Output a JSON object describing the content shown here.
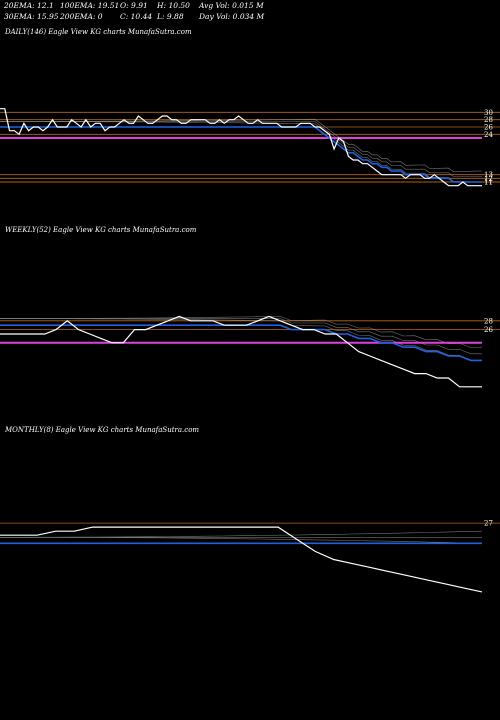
{
  "header": {
    "row1": [
      "20EMA: 12.1",
      "100EMA: 19.51",
      "O: 9.91",
      "H: 10.50",
      "Avg Vol: 0.015 M"
    ],
    "row2": [
      "30EMA: 15.95",
      "200EMA: 0",
      "C: 10.44",
      "L: 9.88",
      "Day Vol: 0.034  M"
    ]
  },
  "panels": {
    "daily": {
      "title": "DAILY(146) Eagle   View  KG charts MunafaSutra.com"
    },
    "weekly": {
      "title": "WEEKLY(52) Eagle   View  KG charts MunafaSutra.com"
    },
    "monthly": {
      "title": "MONTHLY(8) Eagle   View  KG charts MunafaSutra.com"
    }
  },
  "colors": {
    "background": "#000000",
    "price": "#ffffff",
    "ema_blue": "#2060e0",
    "ema_magenta": "#e040e0",
    "level_orange": "#b8661c",
    "ema_gray": "#909090"
  },
  "chart_data": [
    {
      "type": "line",
      "name": "daily",
      "level_labels": [
        "30",
        "28",
        "26",
        "24",
        "13",
        "12",
        "11",
        "11"
      ],
      "levels": [
        30,
        28,
        26,
        24,
        13,
        12,
        11,
        11
      ],
      "price": [
        31,
        31,
        25,
        25,
        24,
        27,
        25,
        26,
        26,
        25,
        26,
        28,
        26,
        26,
        26,
        28,
        27,
        26,
        28,
        26,
        27,
        27,
        25,
        26,
        26,
        27,
        28,
        27,
        27,
        29,
        28,
        27,
        27,
        28,
        29,
        29,
        28,
        28,
        27,
        27,
        28,
        28,
        28,
        28,
        27,
        27,
        28,
        27,
        28,
        28,
        29,
        28,
        27,
        27,
        28,
        27,
        27,
        27,
        27,
        26,
        26,
        26,
        26,
        27,
        27,
        27,
        26,
        26,
        25,
        24,
        20,
        23,
        22,
        18,
        17,
        17,
        16,
        16,
        15,
        14,
        13,
        13,
        13,
        13,
        13,
        12,
        13,
        13,
        13,
        12,
        12,
        13,
        12,
        11,
        10,
        10,
        10,
        11,
        10,
        10,
        10,
        10
      ],
      "blue_ema": [
        26,
        26,
        26,
        26,
        26,
        26,
        26,
        26,
        26,
        26,
        26,
        26,
        26,
        26,
        26,
        26,
        26,
        26,
        26,
        26,
        26,
        26,
        26,
        26,
        26,
        26,
        26,
        26,
        26,
        26,
        26,
        26,
        26,
        26,
        26,
        26,
        26,
        26,
        26,
        26,
        26,
        26,
        26,
        26,
        26,
        26,
        26,
        26,
        26,
        26,
        26,
        26,
        26,
        26,
        26,
        26,
        26,
        26,
        26,
        26,
        26,
        26,
        26,
        26,
        26,
        26,
        26,
        25,
        24,
        23,
        22,
        21,
        20,
        19,
        19,
        18,
        17,
        17,
        16,
        16,
        15,
        15,
        14,
        14,
        14,
        13,
        13,
        13,
        13,
        13,
        12,
        12,
        12,
        12,
        12,
        11,
        11,
        11,
        11,
        11,
        11,
        11
      ],
      "magenta_ema": 23
    },
    {
      "type": "line",
      "name": "weekly",
      "level_labels": [
        "28",
        "26"
      ],
      "levels": [
        28,
        26
      ],
      "price": [
        25,
        25,
        25,
        25,
        25,
        26,
        28,
        26,
        25,
        24,
        23,
        23,
        26,
        26,
        27,
        28,
        29,
        28,
        28,
        28,
        27,
        27,
        27,
        28,
        29,
        28,
        27,
        26,
        26,
        25,
        25,
        23,
        21,
        20,
        19,
        18,
        17,
        16,
        16,
        15,
        15,
        13,
        13,
        13
      ],
      "blue_ema": [
        27,
        27,
        27,
        27,
        27,
        27,
        27,
        27,
        27,
        27,
        27,
        27,
        27,
        27,
        27,
        27,
        27,
        27,
        27,
        27,
        27,
        27,
        27,
        27,
        27,
        27,
        26,
        26,
        26,
        26,
        25,
        25,
        24,
        24,
        23,
        23,
        22,
        22,
        21,
        21,
        20,
        20,
        19,
        19
      ],
      "magenta_ema": 23
    },
    {
      "type": "line",
      "name": "monthly",
      "level_labels": [
        "27"
      ],
      "levels": [
        27
      ],
      "price": [
        24,
        24,
        24,
        25,
        25,
        26,
        26,
        26,
        26,
        26,
        26,
        26,
        26,
        26,
        26,
        26,
        23,
        20,
        18,
        17,
        16,
        15,
        14,
        13,
        12,
        11,
        10
      ],
      "blue_ema": [
        22,
        22,
        22,
        22,
        22,
        22,
        22,
        22,
        22,
        22,
        22,
        22,
        22,
        22,
        22,
        22,
        22,
        22,
        22,
        22,
        22,
        22,
        22,
        22,
        22,
        22,
        22
      ]
    }
  ]
}
